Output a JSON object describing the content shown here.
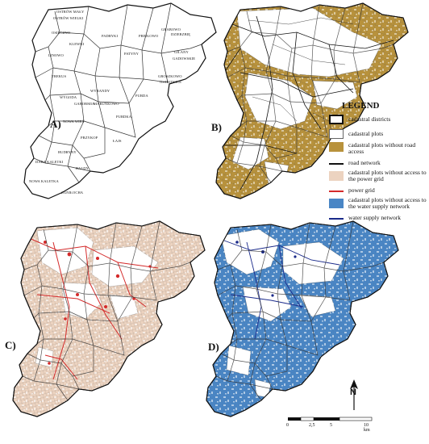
{
  "panels": [
    {
      "label": "A)"
    },
    {
      "label": "B)"
    },
    {
      "label": "C)"
    },
    {
      "label": "D)"
    }
  ],
  "districts": [
    "OSTRÓW MAŁY",
    "OSTRÓW WIELKI",
    "OSIECZNO",
    "KLEWKI",
    "LINOWO",
    "PADRYKI",
    "PREJŁOWO",
    "GRABOWO",
    "DZIERZBIĘ",
    "GILANY",
    "GADOWSKIE",
    "PATYNY",
    "TREKUS",
    "WYGODA",
    "GABORMIA",
    "MARUNKOWO",
    "WYRANDY",
    "PURDA",
    "GROSZKOWO",
    "OSTROWICE",
    "BUDRYNY",
    "PURDKA",
    "NOWA WIEŚ",
    "PRZYKOP",
    "ŁAJS",
    "DARA KALETKI",
    "BALDY",
    "NOWA KALETKA",
    "ZGNIŁOCHA"
  ],
  "legend": {
    "title": "LEGEND",
    "items": [
      {
        "label": "cadastral districts",
        "symbol": "box-thick",
        "color": "#ffffff"
      },
      {
        "label": "cadastral plots",
        "symbol": "box",
        "color": "#ffffff"
      },
      {
        "label": "cadastral plots without road access",
        "symbol": "fill",
        "color": "#b8923c"
      },
      {
        "label": "road network",
        "symbol": "line",
        "color": "#111111"
      },
      {
        "label": "cadastral plots without access to the power grid",
        "symbol": "fill",
        "color": "#ecd3c0"
      },
      {
        "label": "power grid",
        "symbol": "line",
        "color": "#d42a2a"
      },
      {
        "label": "cadastral plots without access to the water supply network",
        "symbol": "fill",
        "color": "#4a86c5"
      },
      {
        "label": "water supply network",
        "symbol": "line",
        "color": "#1a2a8a"
      }
    ]
  },
  "scale_bar": {
    "ticks": [
      "0",
      "2,5",
      "5",
      "10 km"
    ]
  },
  "north_arrow": {
    "letter": "N"
  },
  "colors": {
    "road_access_fill": "#b8923c",
    "power_fill": "#ecd3c0",
    "water_fill": "#4a86c5",
    "power_line": "#d42a2a",
    "water_line": "#1a2a8a"
  }
}
